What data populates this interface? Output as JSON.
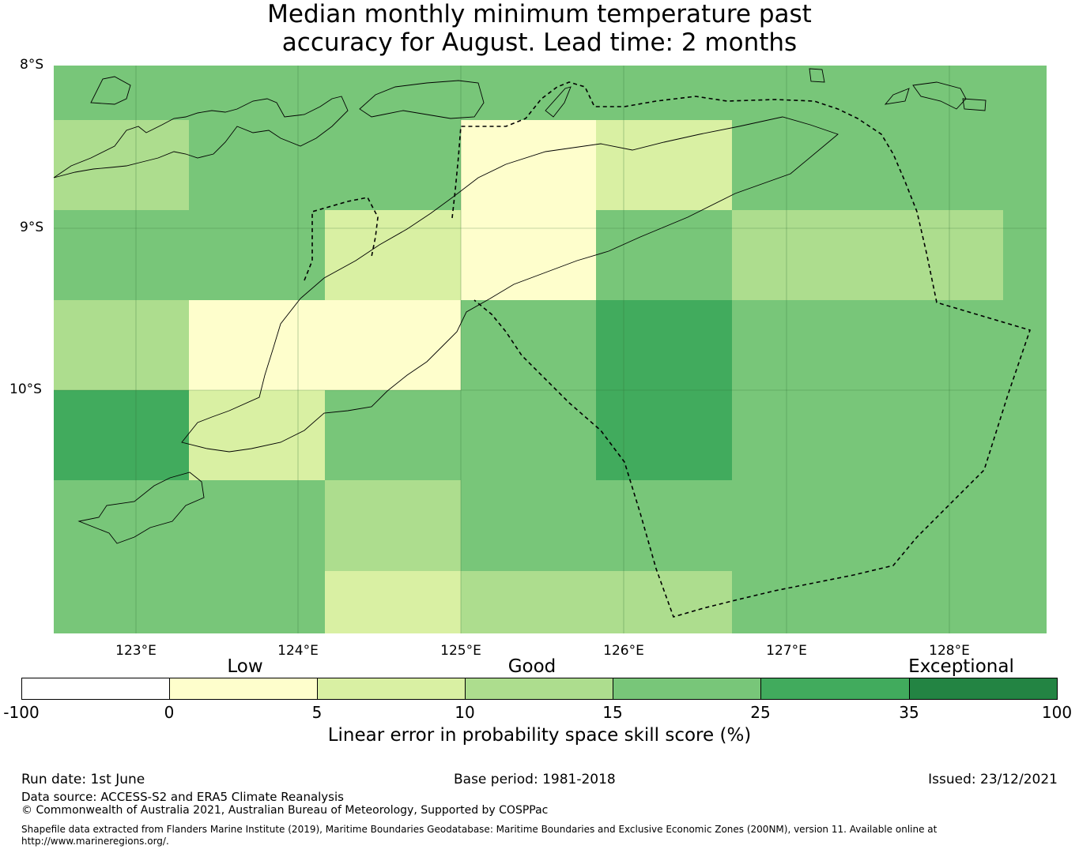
{
  "title_line1": "Median monthly minimum temperature past",
  "title_line2": "accuracy for August. Lead time: 2 months",
  "map": {
    "lat_labels": [
      "8°S",
      "9°S",
      "10°S"
    ],
    "lon_labels": [
      "123°E",
      "124°E",
      "125°E",
      "126°E",
      "127°E",
      "128°E"
    ],
    "grid_cells": [
      {
        "row": 0,
        "col": 0,
        "category": "25"
      },
      {
        "row": 0,
        "col": 1,
        "category": "25"
      },
      {
        "row": 0,
        "col": 2,
        "category": "25"
      },
      {
        "row": 0,
        "col": 3,
        "category": "25"
      },
      {
        "row": 0,
        "col": 4,
        "category": "25"
      },
      {
        "row": 0,
        "col": 5,
        "category": "25"
      },
      {
        "row": 0,
        "col": 6,
        "category": "25"
      },
      {
        "row": 0,
        "col": 7,
        "category": "25"
      },
      {
        "row": 1,
        "col": 0,
        "category": "15"
      },
      {
        "row": 1,
        "col": 1,
        "category": "25"
      },
      {
        "row": 1,
        "col": 2,
        "category": "25"
      },
      {
        "row": 1,
        "col": 3,
        "category": "5"
      },
      {
        "row": 1,
        "col": 4,
        "category": "10"
      },
      {
        "row": 1,
        "col": 5,
        "category": "25"
      },
      {
        "row": 1,
        "col": 6,
        "category": "25"
      },
      {
        "row": 1,
        "col": 7,
        "category": "25"
      },
      {
        "row": 2,
        "col": 0,
        "category": "25"
      },
      {
        "row": 2,
        "col": 1,
        "category": "25"
      },
      {
        "row": 2,
        "col": 2,
        "category": "10"
      },
      {
        "row": 2,
        "col": 3,
        "category": "5"
      },
      {
        "row": 2,
        "col": 4,
        "category": "25"
      },
      {
        "row": 2,
        "col": 5,
        "category": "15"
      },
      {
        "row": 2,
        "col": 6,
        "category": "15"
      },
      {
        "row": 2,
        "col": 7,
        "category": "25"
      },
      {
        "row": 3,
        "col": 0,
        "category": "15"
      },
      {
        "row": 3,
        "col": 1,
        "category": "5"
      },
      {
        "row": 3,
        "col": 2,
        "category": "5"
      },
      {
        "row": 3,
        "col": 3,
        "category": "25"
      },
      {
        "row": 3,
        "col": 4,
        "category": "35"
      },
      {
        "row": 3,
        "col": 5,
        "category": "25"
      },
      {
        "row": 3,
        "col": 6,
        "category": "25"
      },
      {
        "row": 3,
        "col": 7,
        "category": "25"
      },
      {
        "row": 4,
        "col": 0,
        "category": "35"
      },
      {
        "row": 4,
        "col": 1,
        "category": "10"
      },
      {
        "row": 4,
        "col": 2,
        "category": "25"
      },
      {
        "row": 4,
        "col": 3,
        "category": "25"
      },
      {
        "row": 4,
        "col": 4,
        "category": "35"
      },
      {
        "row": 4,
        "col": 5,
        "category": "25"
      },
      {
        "row": 4,
        "col": 6,
        "category": "25"
      },
      {
        "row": 4,
        "col": 7,
        "category": "25"
      },
      {
        "row": 5,
        "col": 0,
        "category": "25"
      },
      {
        "row": 5,
        "col": 1,
        "category": "25"
      },
      {
        "row": 5,
        "col": 2,
        "category": "15"
      },
      {
        "row": 5,
        "col": 3,
        "category": "25"
      },
      {
        "row": 5,
        "col": 4,
        "category": "25"
      },
      {
        "row": 5,
        "col": 5,
        "category": "25"
      },
      {
        "row": 5,
        "col": 6,
        "category": "25"
      },
      {
        "row": 5,
        "col": 7,
        "category": "25"
      },
      {
        "row": 6,
        "col": 0,
        "category": "25"
      },
      {
        "row": 6,
        "col": 1,
        "category": "25"
      },
      {
        "row": 6,
        "col": 2,
        "category": "10"
      },
      {
        "row": 6,
        "col": 3,
        "category": "15"
      },
      {
        "row": 6,
        "col": 4,
        "category": "15"
      },
      {
        "row": 6,
        "col": 5,
        "category": "25"
      },
      {
        "row": 6,
        "col": 6,
        "category": "25"
      },
      {
        "row": 6,
        "col": 7,
        "category": "25"
      }
    ]
  },
  "legend": {
    "categories": [
      "Low",
      "Good",
      "Exceptional"
    ],
    "ticks": [
      "-100",
      "0",
      "5",
      "10",
      "15",
      "25",
      "35",
      "100"
    ],
    "colors": [
      "#ffffff",
      "#fefecc",
      "#d9f0a3",
      "#addd8e",
      "#78c679",
      "#41ab5d",
      "#238443"
    ],
    "title": "Linear error in probability space skill score (%)"
  },
  "footer": {
    "run_date": "Run date: 1st June",
    "base_period": "Base period: 1981-2018",
    "issued": "Issued: 23/12/2021",
    "data_source": "Data source: ACCESS-S2 and ERA5 Climate Reanalysis",
    "copyright": "© Commonwealth of Australia 2021, Australian Bureau of Meteorology, Supported by COSPPac",
    "shapefile_note": "Shapefile data extracted from Flanders Marine Institute (2019), Maritime Boundaries Geodatabase: Maritime Boundaries and Exclusive Economic Zones (200NM), version 11. Available online at http://www.marineregions.org/."
  }
}
